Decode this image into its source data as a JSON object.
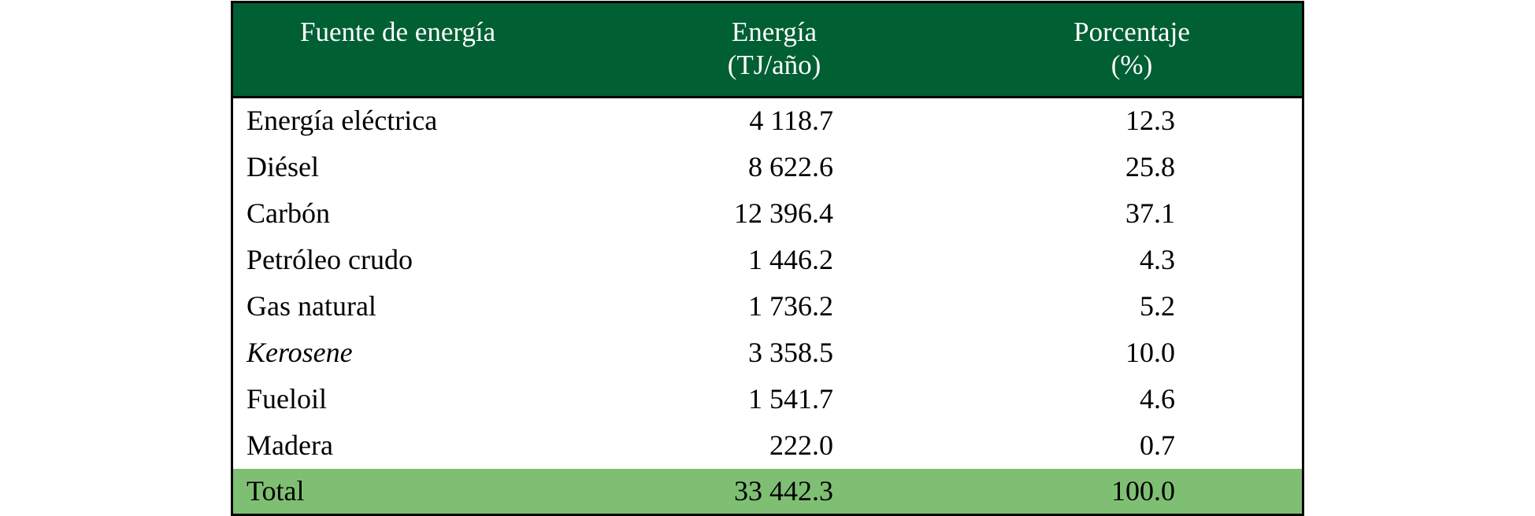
{
  "header": {
    "col1": "Fuente de energía",
    "col2_line1": "Energía",
    "col2_line2": "(TJ/año)",
    "col3_line1": "Porcentaje",
    "col3_line2": "(%)"
  },
  "rows": [
    {
      "source": "Energía eléctrica",
      "energy": "4 118.7",
      "percent": "12.3"
    },
    {
      "source": "Diésel",
      "energy": "8 622.6",
      "percent": "25.8"
    },
    {
      "source": "Carbón",
      "energy": "12 396.4",
      "percent": "37.1"
    },
    {
      "source": "Petróleo crudo",
      "energy": "1 446.2",
      "percent": "4.3"
    },
    {
      "source": "Gas natural",
      "energy": "1 736.2",
      "percent": "5.2"
    },
    {
      "source": "Kerosene",
      "energy": "3 358.5",
      "percent": "10.0",
      "italic": true
    },
    {
      "source": "Fueloil",
      "energy": "1 541.7",
      "percent": "4.6"
    },
    {
      "source": "Madera",
      "energy": "222.0",
      "percent": "0.7"
    }
  ],
  "total": {
    "source": "Total",
    "energy": "33 442.3",
    "percent": "100.0"
  },
  "colors": {
    "header_bg": "#005f33",
    "total_bg": "#7fbf73"
  }
}
